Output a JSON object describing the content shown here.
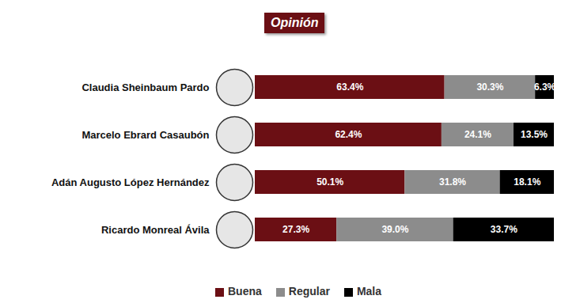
{
  "chart_data": {
    "type": "bar",
    "title": "Opinión",
    "orientation": "horizontal",
    "stacked": true,
    "data_labels": true,
    "tick_labels": "y",
    "legend": "bottom",
    "categories": [
      "Claudia Sheinbaum Pardo",
      "Marcelo Ebrard Casaubón",
      "Adán Augusto López Hernández",
      "Ricardo Monreal Ávila"
    ],
    "xlim": [
      0,
      100
    ],
    "series": [
      {
        "name": "Buena",
        "color": "#6b0f14",
        "values": [
          63.4,
          62.4,
          50.1,
          27.3
        ],
        "value_labels": [
          "63.4%",
          "62.4%",
          "50.1%",
          "27.3%"
        ]
      },
      {
        "name": "Regular",
        "color": "#8c8c8c",
        "values": [
          30.3,
          24.1,
          31.8,
          39.0
        ],
        "value_labels": [
          "30.3%",
          "24.1%",
          "31.8%",
          "39.0%"
        ]
      },
      {
        "name": "Mala",
        "color": "#000000",
        "values": [
          6.3,
          13.5,
          18.1,
          33.7
        ],
        "value_labels": [
          "6.3%",
          "13.5%",
          "18.1%",
          "33.7%"
        ]
      }
    ]
  }
}
